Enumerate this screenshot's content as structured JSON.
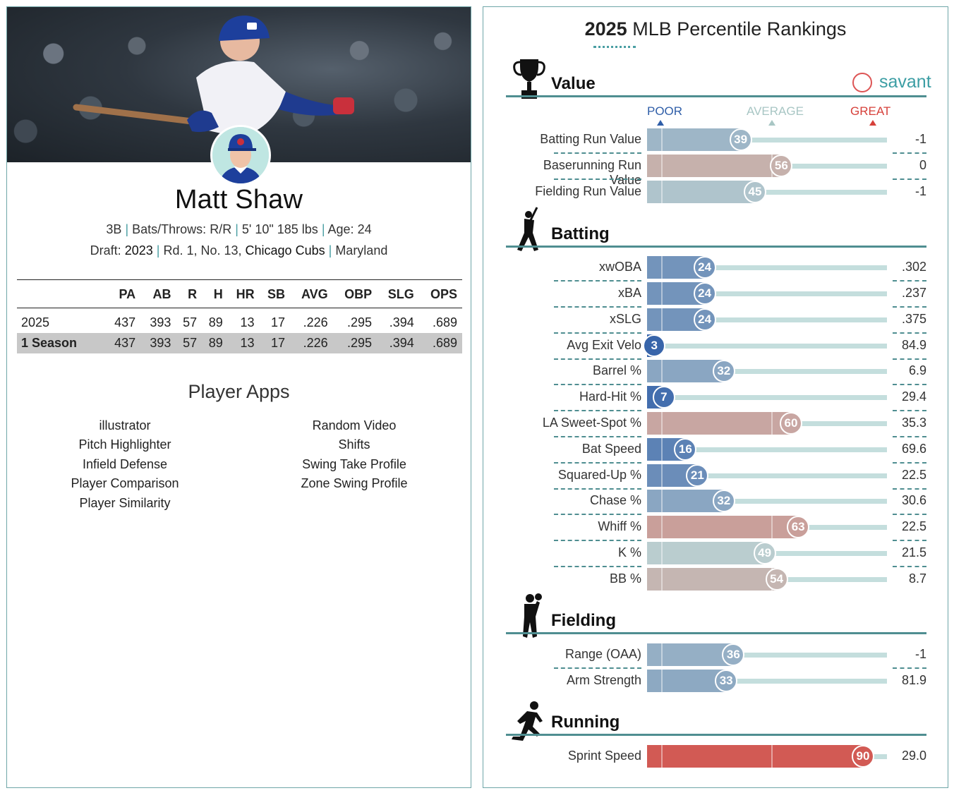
{
  "player": {
    "name": "Matt Shaw",
    "position": "3B",
    "bats_throws_label": "Bats/Throws:",
    "bats_throws": "R/R",
    "height_weight": "5' 10\" 185 lbs",
    "age_label": "Age:",
    "age": "24",
    "draft_label": "Draft:",
    "draft_year": "2023",
    "draft_pick": "Rd. 1, No. 13,",
    "draft_team": "Chicago Cubs",
    "school": "Maryland"
  },
  "stats": {
    "headers": [
      "",
      "PA",
      "AB",
      "R",
      "H",
      "HR",
      "SB",
      "AVG",
      "OBP",
      "SLG",
      "OPS"
    ],
    "rows": [
      [
        "2025",
        "437",
        "393",
        "57",
        "89",
        "13",
        "17",
        ".226",
        ".295",
        ".394",
        ".689"
      ],
      [
        "1 Season",
        "437",
        "393",
        "57",
        "89",
        "13",
        "17",
        ".226",
        ".295",
        ".394",
        ".689"
      ]
    ]
  },
  "apps": {
    "title": "Player Apps",
    "left": [
      "illustrator",
      "Pitch Highlighter",
      "Infield Defense",
      "Player Comparison",
      "Player Similarity"
    ],
    "right": [
      "Random Video",
      "Shifts",
      "Swing Take Profile",
      "Zone Swing Profile"
    ]
  },
  "rankings": {
    "title_year": "2025",
    "title_rest": "MLB Percentile Rankings",
    "brand": "savant",
    "scale": {
      "poor": "POOR",
      "average": "AVERAGE",
      "great": "GREAT"
    },
    "colors": {
      "poor": "#2f5ea8",
      "average": "#a8c6c4",
      "great": "#d6403a",
      "rule": "#4f8e91"
    },
    "sections": [
      {
        "id": "value",
        "title": "Value",
        "icon": "trophy-icon",
        "metrics": [
          {
            "label": "Batting Run Value",
            "pct": 39,
            "value": "-1"
          },
          {
            "label": "Baserunning Run Value",
            "pct": 56,
            "value": "0"
          },
          {
            "label": "Fielding Run Value",
            "pct": 45,
            "value": "-1"
          }
        ]
      },
      {
        "id": "batting",
        "title": "Batting",
        "icon": "batter-icon",
        "metrics": [
          {
            "label": "xwOBA",
            "pct": 24,
            "value": ".302"
          },
          {
            "label": "xBA",
            "pct": 24,
            "value": ".237"
          },
          {
            "label": "xSLG",
            "pct": 24,
            "value": ".375"
          },
          {
            "label": "Avg Exit Velo",
            "pct": 3,
            "value": "84.9"
          },
          {
            "label": "Barrel %",
            "pct": 32,
            "value": "6.9"
          },
          {
            "label": "Hard-Hit %",
            "pct": 7,
            "value": "29.4"
          },
          {
            "label": "LA Sweet-Spot %",
            "pct": 60,
            "value": "35.3"
          },
          {
            "label": "Bat Speed",
            "pct": 16,
            "value": "69.6"
          },
          {
            "label": "Squared-Up %",
            "pct": 21,
            "value": "22.5"
          },
          {
            "label": "Chase %",
            "pct": 32,
            "value": "30.6"
          },
          {
            "label": "Whiff %",
            "pct": 63,
            "value": "22.5"
          },
          {
            "label": "K %",
            "pct": 49,
            "value": "21.5"
          },
          {
            "label": "BB %",
            "pct": 54,
            "value": "8.7"
          }
        ]
      },
      {
        "id": "fielding",
        "title": "Fielding",
        "icon": "fielder-icon",
        "metrics": [
          {
            "label": "Range (OAA)",
            "pct": 36,
            "value": "-1"
          },
          {
            "label": "Arm Strength",
            "pct": 33,
            "value": "81.9"
          }
        ]
      },
      {
        "id": "running",
        "title": "Running",
        "icon": "runner-icon",
        "metrics": [
          {
            "label": "Sprint Speed",
            "pct": 90,
            "value": "29.0"
          }
        ]
      }
    ]
  }
}
